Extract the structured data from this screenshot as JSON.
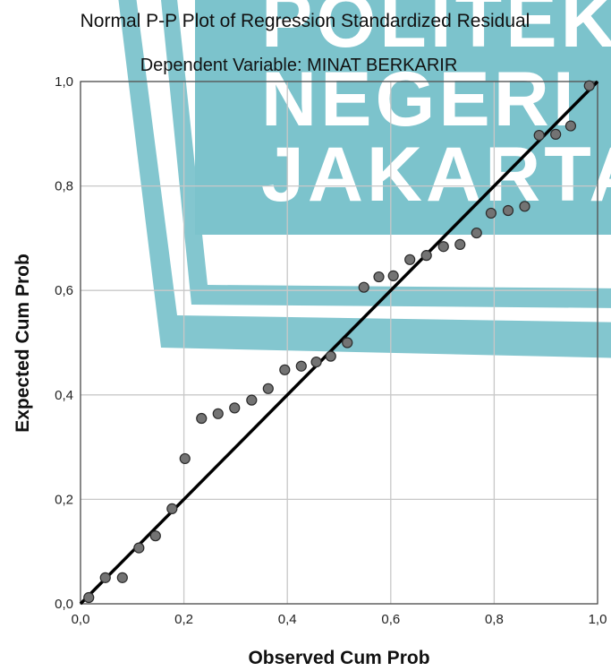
{
  "watermark": {
    "lines": [
      "POLITEKNIK",
      "NEGERI",
      "JAKARTA"
    ],
    "color": "#7cc3cc"
  },
  "chart_data": {
    "type": "scatter",
    "title": "Normal P-P Plot of Regression Standardized Residual",
    "subtitle": "Dependent Variable: MINAT BERKARIR",
    "xlabel": "Observed Cum Prob",
    "ylabel": "Expected Cum Prob",
    "xlim": [
      0,
      1
    ],
    "ylim": [
      0,
      1
    ],
    "x_ticks": [
      "0,0",
      "0,2",
      "0,4",
      "0,6",
      "0,8",
      "1,0"
    ],
    "y_ticks": [
      "0,0",
      "0,2",
      "0,4",
      "0,6",
      "0,8",
      "1,0"
    ],
    "grid": true,
    "reference_line": [
      [
        0,
        0
      ],
      [
        1,
        1
      ]
    ],
    "point_color": "#737373",
    "line_color": "#000000",
    "points": [
      {
        "x": 0.016,
        "y": 0.012
      },
      {
        "x": 0.048,
        "y": 0.05
      },
      {
        "x": 0.081,
        "y": 0.05
      },
      {
        "x": 0.113,
        "y": 0.107
      },
      {
        "x": 0.145,
        "y": 0.13
      },
      {
        "x": 0.177,
        "y": 0.182
      },
      {
        "x": 0.202,
        "y": 0.278
      },
      {
        "x": 0.234,
        "y": 0.355
      },
      {
        "x": 0.266,
        "y": 0.364
      },
      {
        "x": 0.298,
        "y": 0.375
      },
      {
        "x": 0.331,
        "y": 0.39
      },
      {
        "x": 0.363,
        "y": 0.412
      },
      {
        "x": 0.395,
        "y": 0.448
      },
      {
        "x": 0.427,
        "y": 0.455
      },
      {
        "x": 0.456,
        "y": 0.463
      },
      {
        "x": 0.484,
        "y": 0.474
      },
      {
        "x": 0.516,
        "y": 0.5
      },
      {
        "x": 0.548,
        "y": 0.606
      },
      {
        "x": 0.577,
        "y": 0.626
      },
      {
        "x": 0.605,
        "y": 0.628
      },
      {
        "x": 0.637,
        "y": 0.659
      },
      {
        "x": 0.669,
        "y": 0.667
      },
      {
        "x": 0.702,
        "y": 0.684
      },
      {
        "x": 0.734,
        "y": 0.688
      },
      {
        "x": 0.766,
        "y": 0.71
      },
      {
        "x": 0.794,
        "y": 0.748
      },
      {
        "x": 0.827,
        "y": 0.753
      },
      {
        "x": 0.859,
        "y": 0.761
      },
      {
        "x": 0.887,
        "y": 0.897
      },
      {
        "x": 0.919,
        "y": 0.899
      },
      {
        "x": 0.948,
        "y": 0.915
      },
      {
        "x": 0.984,
        "y": 0.992
      }
    ]
  }
}
